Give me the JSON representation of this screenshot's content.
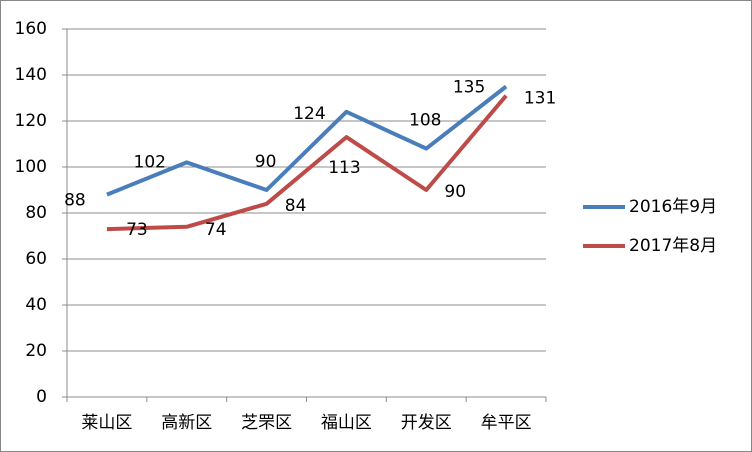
{
  "chart_data": {
    "type": "line",
    "categories": [
      "莱山区",
      "高新区",
      "芝罘区",
      "福山区",
      "开发区",
      "牟平区"
    ],
    "series": [
      {
        "name": "2016年9月",
        "color": "#4a7ebb",
        "values": [
          88,
          102,
          90,
          124,
          108,
          135
        ]
      },
      {
        "name": "2017年8月",
        "color": "#be4b48",
        "values": [
          73,
          74,
          84,
          113,
          90,
          131
        ]
      }
    ],
    "ylim": [
      0,
      160
    ],
    "yticks": [
      0,
      20,
      40,
      60,
      80,
      100,
      120,
      140,
      160
    ],
    "grid": true,
    "legend": "right"
  }
}
